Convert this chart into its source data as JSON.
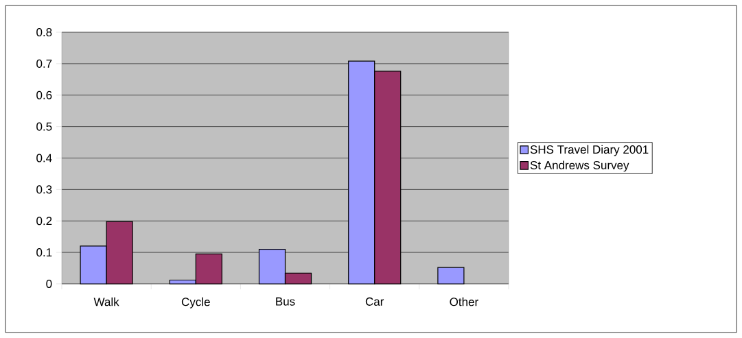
{
  "chart_data": {
    "type": "bar",
    "categories": [
      "Walk",
      "Cycle",
      "Bus",
      "Car",
      "Other"
    ],
    "series": [
      {
        "name": "SHS Travel Diary 2001",
        "color": "#9999ff",
        "values": [
          0.12,
          0.012,
          0.11,
          0.708,
          0.052
        ]
      },
      {
        "name": "St Andrews Survey",
        "color": "#993366",
        "values": [
          0.198,
          0.095,
          0.034,
          0.676,
          null
        ]
      }
    ],
    "ylim": [
      0,
      0.8
    ],
    "yticks": [
      0,
      0.1,
      0.2,
      0.3,
      0.4,
      0.5,
      0.6,
      0.7,
      0.8
    ],
    "grid": "y",
    "legend": "right"
  }
}
